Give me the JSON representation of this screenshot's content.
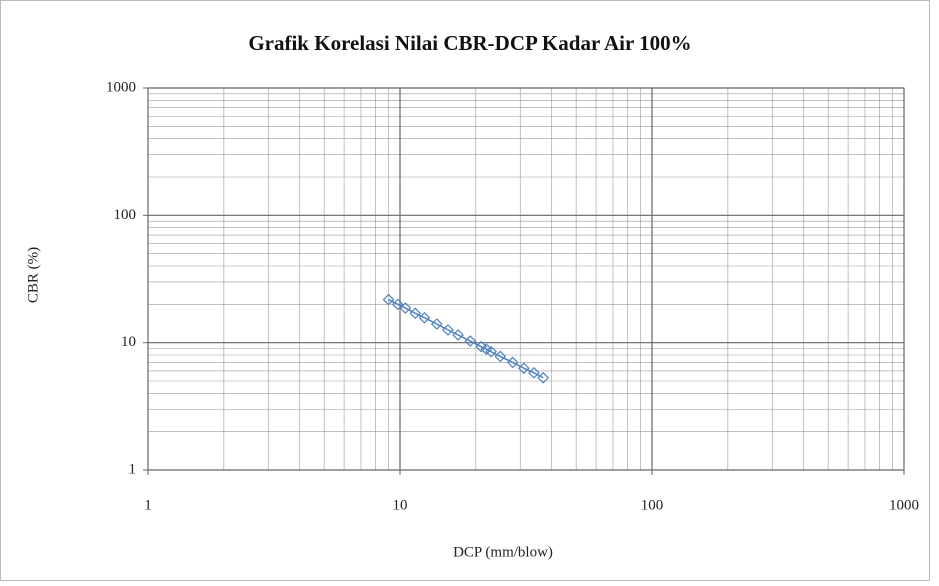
{
  "chart_data": {
    "type": "scatter",
    "title": "Grafik Korelasi Nilai CBR-DCP Kadar Air 100%",
    "x_label": "DCP (mm/blow)",
    "y_label": "CBR (%)",
    "log_x": true,
    "log_y": true,
    "grid": true,
    "show_line": true,
    "xlim": [
      1,
      1000
    ],
    "ylim": [
      1,
      1000
    ],
    "xticks": [
      1,
      10,
      100,
      1000
    ],
    "yticks": [
      1,
      10,
      100,
      1000
    ],
    "series": [
      {
        "color": "#4f81bd",
        "x": [
          9,
          9.8,
          10.5,
          11.5,
          12.5,
          14,
          15.5,
          17,
          19,
          21,
          22,
          23,
          25,
          28,
          31,
          34,
          37
        ],
        "values": [
          21.8,
          20,
          18.7,
          17,
          15.7,
          14,
          12.6,
          11.5,
          10.3,
          9.3,
          8.9,
          8.5,
          7.8,
          7,
          6.3,
          5.8,
          5.3
        ]
      }
    ]
  }
}
